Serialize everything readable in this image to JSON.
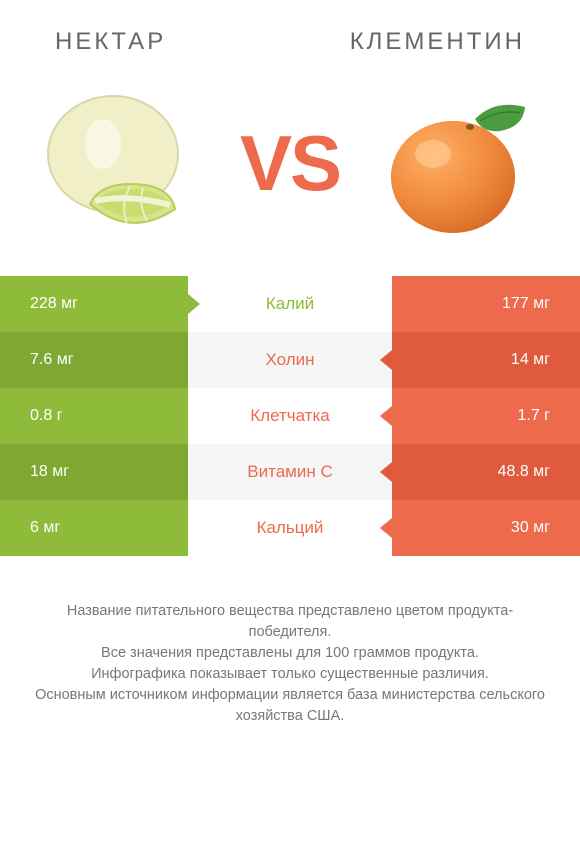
{
  "colors": {
    "left_primary": "#8fbb3a",
    "left_shade": "#7ea832",
    "right_primary": "#ed6a4d",
    "right_shade": "#e05a3e",
    "vs": "#ed6a4d",
    "mid_text": "#ed6a4d",
    "title": "#666666",
    "footer": "#777777"
  },
  "header": {
    "left": "НЕКТАР",
    "right": "КЛЕМЕНТИН"
  },
  "vs": "VS",
  "nutrients": [
    {
      "label": "Калий",
      "left": "228 мг",
      "right": "177 мг",
      "winner": "left"
    },
    {
      "label": "Холин",
      "left": "7.6 мг",
      "right": "14 мг",
      "winner": "right"
    },
    {
      "label": "Клетчатка",
      "left": "0.8 г",
      "right": "1.7 г",
      "winner": "right"
    },
    {
      "label": "Витамин C",
      "left": "18 мг",
      "right": "48.8 мг",
      "winner": "right"
    },
    {
      "label": "Кальций",
      "left": "6 мг",
      "right": "30 мг",
      "winner": "right"
    }
  ],
  "footer": {
    "l1": "Название питательного вещества представлено цветом продукта-победителя.",
    "l2": "Все значения представлены для 100 граммов продукта.",
    "l3": "Инфографика показывает только существенные различия.",
    "l4": "Основным источником информации является база министерства сельского хозяйства США."
  },
  "typography": {
    "title_size": 24,
    "vs_size": 78,
    "cell_size": 16,
    "mid_size": 17,
    "footer_size": 14.5
  }
}
